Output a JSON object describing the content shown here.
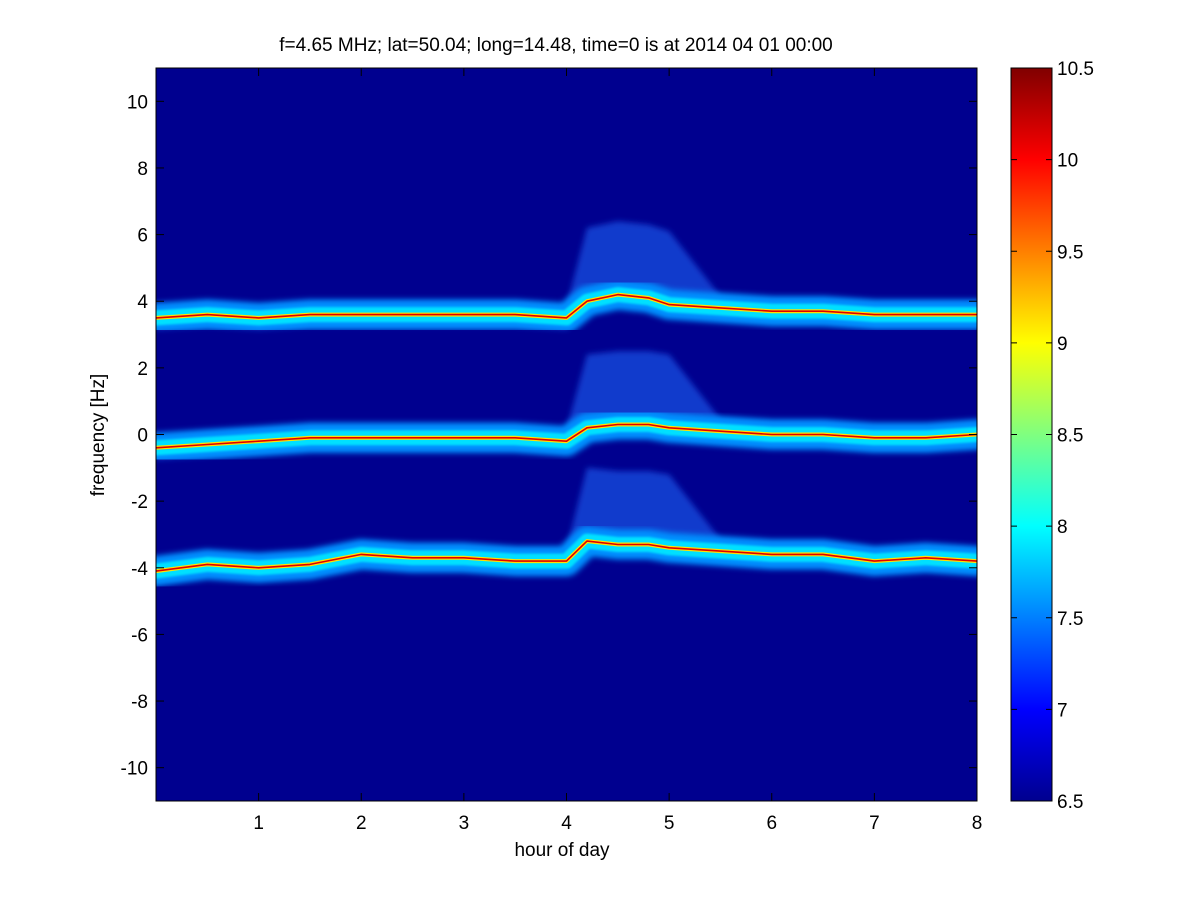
{
  "chart_data": {
    "type": "heatmap",
    "title": "f=4.65 MHz;  lat=50.04; long=14.48, time=0 is at 2014 04 01 00:00",
    "xlabel": "hour of day",
    "ylabel": "frequency [Hz]",
    "xlim": [
      0,
      8
    ],
    "ylim": [
      -11,
      11
    ],
    "x_ticks": [
      "1",
      "2",
      "3",
      "4",
      "5",
      "6",
      "7",
      "8"
    ],
    "y_ticks": [
      "-10",
      "-8",
      "-6",
      "-4",
      "-2",
      "0",
      "2",
      "4",
      "6",
      "8",
      "10"
    ],
    "colorbar": {
      "colormap": "jet",
      "range": [
        6.5,
        10.5
      ],
      "ticks": [
        "6.5",
        "7",
        "7.5",
        "8",
        "8.5",
        "9",
        "9.5",
        "10",
        "10.5"
      ]
    },
    "background_color": "#00008f",
    "traces": [
      {
        "hours": [
          0,
          0.5,
          1,
          1.5,
          2,
          2.5,
          3,
          3.5,
          4,
          4.2,
          4.5,
          4.8,
          5,
          5.5,
          6,
          6.5,
          7,
          7.5,
          8
        ],
        "frequency_hz": [
          3.5,
          3.6,
          3.5,
          3.6,
          3.6,
          3.6,
          3.6,
          3.6,
          3.5,
          4.0,
          4.2,
          4.1,
          3.9,
          3.8,
          3.7,
          3.7,
          3.6,
          3.6,
          3.6
        ]
      },
      {
        "hours": [
          0,
          0.5,
          1,
          1.5,
          2,
          2.5,
          3,
          3.5,
          4,
          4.2,
          4.5,
          4.8,
          5,
          5.5,
          6,
          6.5,
          7,
          7.5,
          8
        ],
        "frequency_hz": [
          -0.4,
          -0.3,
          -0.2,
          -0.1,
          -0.1,
          -0.1,
          -0.1,
          -0.1,
          -0.2,
          0.2,
          0.3,
          0.3,
          0.2,
          0.1,
          0.0,
          0.0,
          -0.1,
          -0.1,
          0.0
        ]
      },
      {
        "hours": [
          0,
          0.5,
          1,
          1.5,
          2,
          2.5,
          3,
          3.5,
          4,
          4.2,
          4.5,
          4.8,
          5,
          5.5,
          6,
          6.5,
          7,
          7.5,
          8
        ],
        "frequency_hz": [
          -4.1,
          -3.9,
          -4.0,
          -3.9,
          -3.6,
          -3.7,
          -3.7,
          -3.8,
          -3.8,
          -3.2,
          -3.3,
          -3.3,
          -3.4,
          -3.5,
          -3.6,
          -3.6,
          -3.8,
          -3.7,
          -3.8
        ]
      }
    ]
  }
}
